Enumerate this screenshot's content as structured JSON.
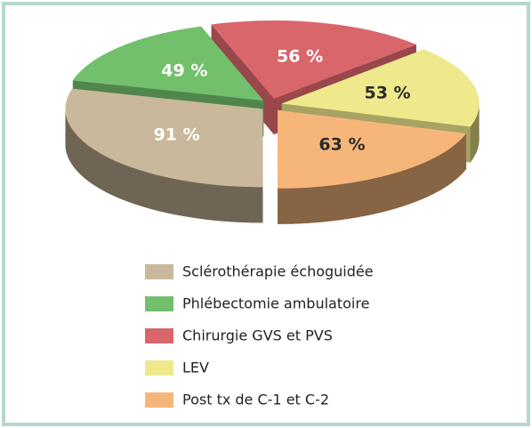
{
  "chart_data": {
    "type": "pie",
    "categories": [
      "Sclérothérapie échoguidée",
      "Phlébectomie ambulatoire",
      "Chirurgie GVS et PVS",
      "LEV",
      "Post tx de C-1 et C-2"
    ],
    "values": [
      91,
      49,
      56,
      53,
      63
    ],
    "value_labels": [
      "91 %",
      "49 %",
      "56 %",
      "53 %",
      "63 %"
    ],
    "colors": [
      "#c9b89b",
      "#72bf6c",
      "#d9666b",
      "#eee98c",
      "#f6b67a"
    ],
    "legend": "bottom"
  }
}
